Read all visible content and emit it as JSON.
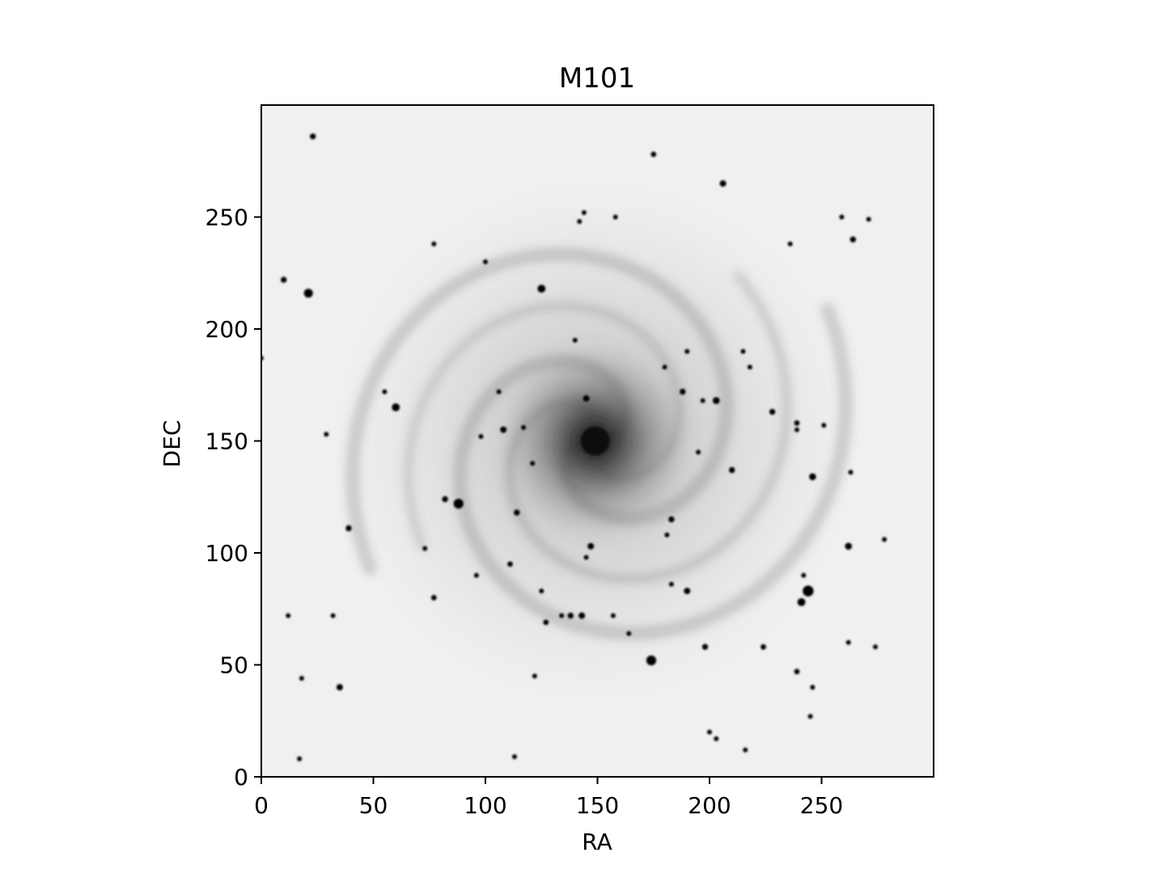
{
  "figure": {
    "title": "M101",
    "xlabel": "RA",
    "ylabel": "DEC"
  },
  "image": {
    "colormap": "gray_r",
    "xlim": [
      0,
      300
    ],
    "ylim": [
      0,
      300
    ],
    "x_ticks": [
      0,
      50,
      100,
      150,
      200,
      250
    ],
    "y_ticks": [
      0,
      50,
      100,
      150,
      200,
      250
    ],
    "x_tick_labels": [
      "0",
      "50",
      "100",
      "150",
      "200",
      "250"
    ],
    "y_tick_labels": [
      "0",
      "50",
      "100",
      "150",
      "200",
      "250"
    ],
    "background_color": "#f0f0f0",
    "galaxy_center": [
      149,
      150
    ],
    "stars": [
      [
        23,
        286,
        1.2
      ],
      [
        144,
        252,
        1.0
      ],
      [
        142,
        248,
        1.0
      ],
      [
        158,
        250,
        1.0
      ],
      [
        175,
        278,
        1.1
      ],
      [
        206,
        265,
        1.3
      ],
      [
        236,
        238,
        1.0
      ],
      [
        264,
        240,
        1.2
      ],
      [
        259,
        250,
        1.0
      ],
      [
        271,
        249,
        1.0
      ],
      [
        77,
        238,
        1.0
      ],
      [
        10,
        222,
        1.2
      ],
      [
        21,
        216,
        1.8
      ],
      [
        100,
        230,
        1.0
      ],
      [
        125,
        218,
        1.6
      ],
      [
        188,
        172,
        1.2
      ],
      [
        197,
        168,
        1.0
      ],
      [
        203,
        168,
        1.4
      ],
      [
        145,
        169,
        1.3
      ],
      [
        108,
        155,
        1.3
      ],
      [
        98,
        152,
        1.0
      ],
      [
        60,
        165,
        1.6
      ],
      [
        55,
        172,
        1.0
      ],
      [
        29,
        153,
        1.0
      ],
      [
        0,
        187,
        1.0
      ],
      [
        239,
        158,
        1.1
      ],
      [
        239,
        155,
        1.0
      ],
      [
        228,
        163,
        1.2
      ],
      [
        218,
        183,
        1.0
      ],
      [
        210,
        137,
        1.2
      ],
      [
        195,
        145,
        1.0
      ],
      [
        246,
        134,
        1.4
      ],
      [
        263,
        136,
        1.0
      ],
      [
        262,
        103,
        1.4
      ],
      [
        278,
        106,
        1.0
      ],
      [
        114,
        118,
        1.2
      ],
      [
        88,
        122,
        2.0
      ],
      [
        82,
        124,
        1.2
      ],
      [
        39,
        111,
        1.2
      ],
      [
        73,
        102,
        1.0
      ],
      [
        125,
        83,
        1.0
      ],
      [
        111,
        95,
        1.1
      ],
      [
        77,
        80,
        1.1
      ],
      [
        138,
        72,
        1.2
      ],
      [
        143,
        72,
        1.3
      ],
      [
        134,
        72,
        1.0
      ],
      [
        127,
        69,
        1.1
      ],
      [
        190,
        83,
        1.3
      ],
      [
        183,
        86,
        1.0
      ],
      [
        244,
        83,
        2.2
      ],
      [
        241,
        78,
        1.6
      ],
      [
        242,
        90,
        1.0
      ],
      [
        174,
        52,
        2.0
      ],
      [
        198,
        58,
        1.2
      ],
      [
        224,
        58,
        1.1
      ],
      [
        239,
        47,
        1.1
      ],
      [
        262,
        60,
        1.0
      ],
      [
        274,
        58,
        1.0
      ],
      [
        35,
        40,
        1.3
      ],
      [
        18,
        44,
        1.0
      ],
      [
        17,
        8,
        1.0
      ],
      [
        113,
        9,
        1.0
      ],
      [
        122,
        45,
        1.0
      ],
      [
        200,
        20,
        1.0
      ],
      [
        203,
        17,
        1.0
      ],
      [
        216,
        12,
        1.0
      ],
      [
        245,
        27,
        1.0
      ],
      [
        246,
        40,
        1.0
      ],
      [
        12,
        72,
        1.0
      ],
      [
        32,
        72,
        1.0
      ],
      [
        117,
        156,
        1.0
      ],
      [
        121,
        140,
        1.0
      ],
      [
        180,
        183,
        1.0
      ],
      [
        190,
        190,
        1.0
      ],
      [
        145,
        98,
        1.0
      ],
      [
        164,
        64,
        1.0
      ],
      [
        157,
        72,
        1.0
      ],
      [
        251,
        157,
        1.0
      ],
      [
        215,
        190,
        1.0
      ],
      [
        96,
        90,
        1.0
      ],
      [
        106,
        172,
        1.0
      ],
      [
        140,
        195,
        1.0
      ],
      [
        183,
        115,
        1.2
      ],
      [
        181,
        108,
        1.0
      ],
      [
        147,
        103,
        1.3
      ]
    ]
  }
}
